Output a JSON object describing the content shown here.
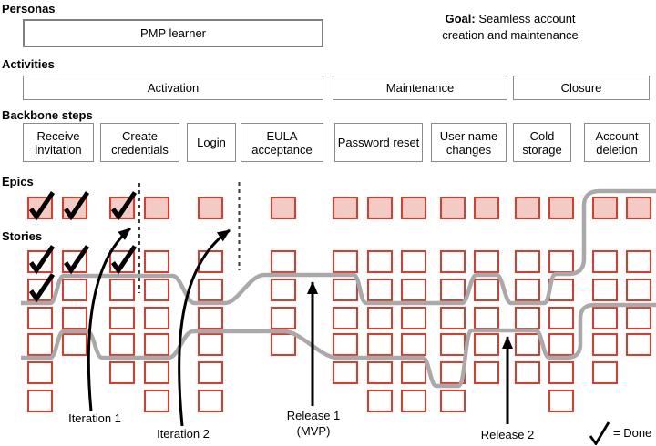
{
  "section_labels": {
    "personas": "Personas",
    "activities": "Activities",
    "backbone": "Backbone steps",
    "epics": "Epics",
    "stories": "Stories"
  },
  "personas": {
    "items": [
      "PMP learner"
    ]
  },
  "goal": {
    "label": "Goal:",
    "line1": "Seamless account",
    "line2": "creation and maintenance"
  },
  "activities": [
    "Activation",
    "Maintenance",
    "Closure"
  ],
  "backbone_steps": [
    "Receive invitation",
    "Create credentials",
    "Login",
    "EULA acceptance",
    "Password reset",
    "User name changes",
    "Cold storage",
    "Account deletion"
  ],
  "annotations": {
    "iteration1": "Iteration 1",
    "iteration2": "Iteration 2",
    "release1_line1": "Release 1",
    "release1_line2": "(MVP)",
    "release2": "Release 2",
    "legend_text": "= Done"
  },
  "colors": {
    "card_border": "#e03a2a",
    "epic_fill": "#f3cbc5",
    "release_line": "#a9a9a9",
    "box_border": "#8c8c8c",
    "ink": "#000000"
  },
  "board": {
    "row_count": 6,
    "columns": [
      {
        "subcols": [
          {
            "epic": "done",
            "stories": [
              "done",
              "done",
              "open",
              "open",
              "open",
              "open"
            ]
          },
          {
            "epic": "done",
            "stories": [
              "done",
              "open",
              "open",
              "open"
            ]
          }
        ]
      },
      {
        "subcols": [
          {
            "epic": "done",
            "stories": [
              "done",
              "open",
              "open",
              "open",
              "open"
            ]
          },
          {
            "epic": "open",
            "stories": [
              "open",
              "open",
              "open",
              "open",
              "open",
              "open"
            ]
          }
        ]
      },
      {
        "subcols": [
          {
            "epic": "open",
            "stories": [
              "open",
              "open",
              "open",
              "open",
              "open",
              "open"
            ]
          }
        ]
      },
      {
        "subcols": [
          {
            "epic": "open",
            "stories": [
              "open",
              "open",
              "open",
              "open"
            ]
          }
        ]
      },
      {
        "subcols": [
          {
            "epic": "open",
            "stories": [
              "open",
              "open",
              "open",
              "open",
              "open"
            ]
          },
          {
            "epic": "open",
            "stories": [
              "open",
              "open",
              "open",
              "open",
              "open",
              "open"
            ]
          },
          {
            "epic": "open",
            "stories": [
              "open",
              "open",
              "open",
              "open",
              "open",
              "open"
            ]
          }
        ]
      },
      {
        "subcols": [
          {
            "epic": "open",
            "stories": [
              "open",
              "open",
              "open",
              "open",
              "open",
              "open"
            ]
          },
          {
            "epic": "open",
            "stories": [
              "open",
              "open",
              "open",
              "open",
              "open"
            ]
          }
        ]
      },
      {
        "subcols": [
          {
            "epic": "open",
            "stories": [
              "open",
              "open",
              "open",
              "open",
              "open"
            ]
          },
          {
            "epic": "open",
            "stories": [
              "open",
              "open",
              "open",
              "open",
              "open",
              "open"
            ]
          }
        ]
      },
      {
        "subcols": [
          {
            "epic": "open",
            "stories": [
              "open",
              "open",
              "open",
              "open",
              "open"
            ]
          },
          {
            "epic": "open",
            "stories": [
              "open",
              "open",
              "open",
              "open"
            ]
          }
        ]
      }
    ]
  }
}
